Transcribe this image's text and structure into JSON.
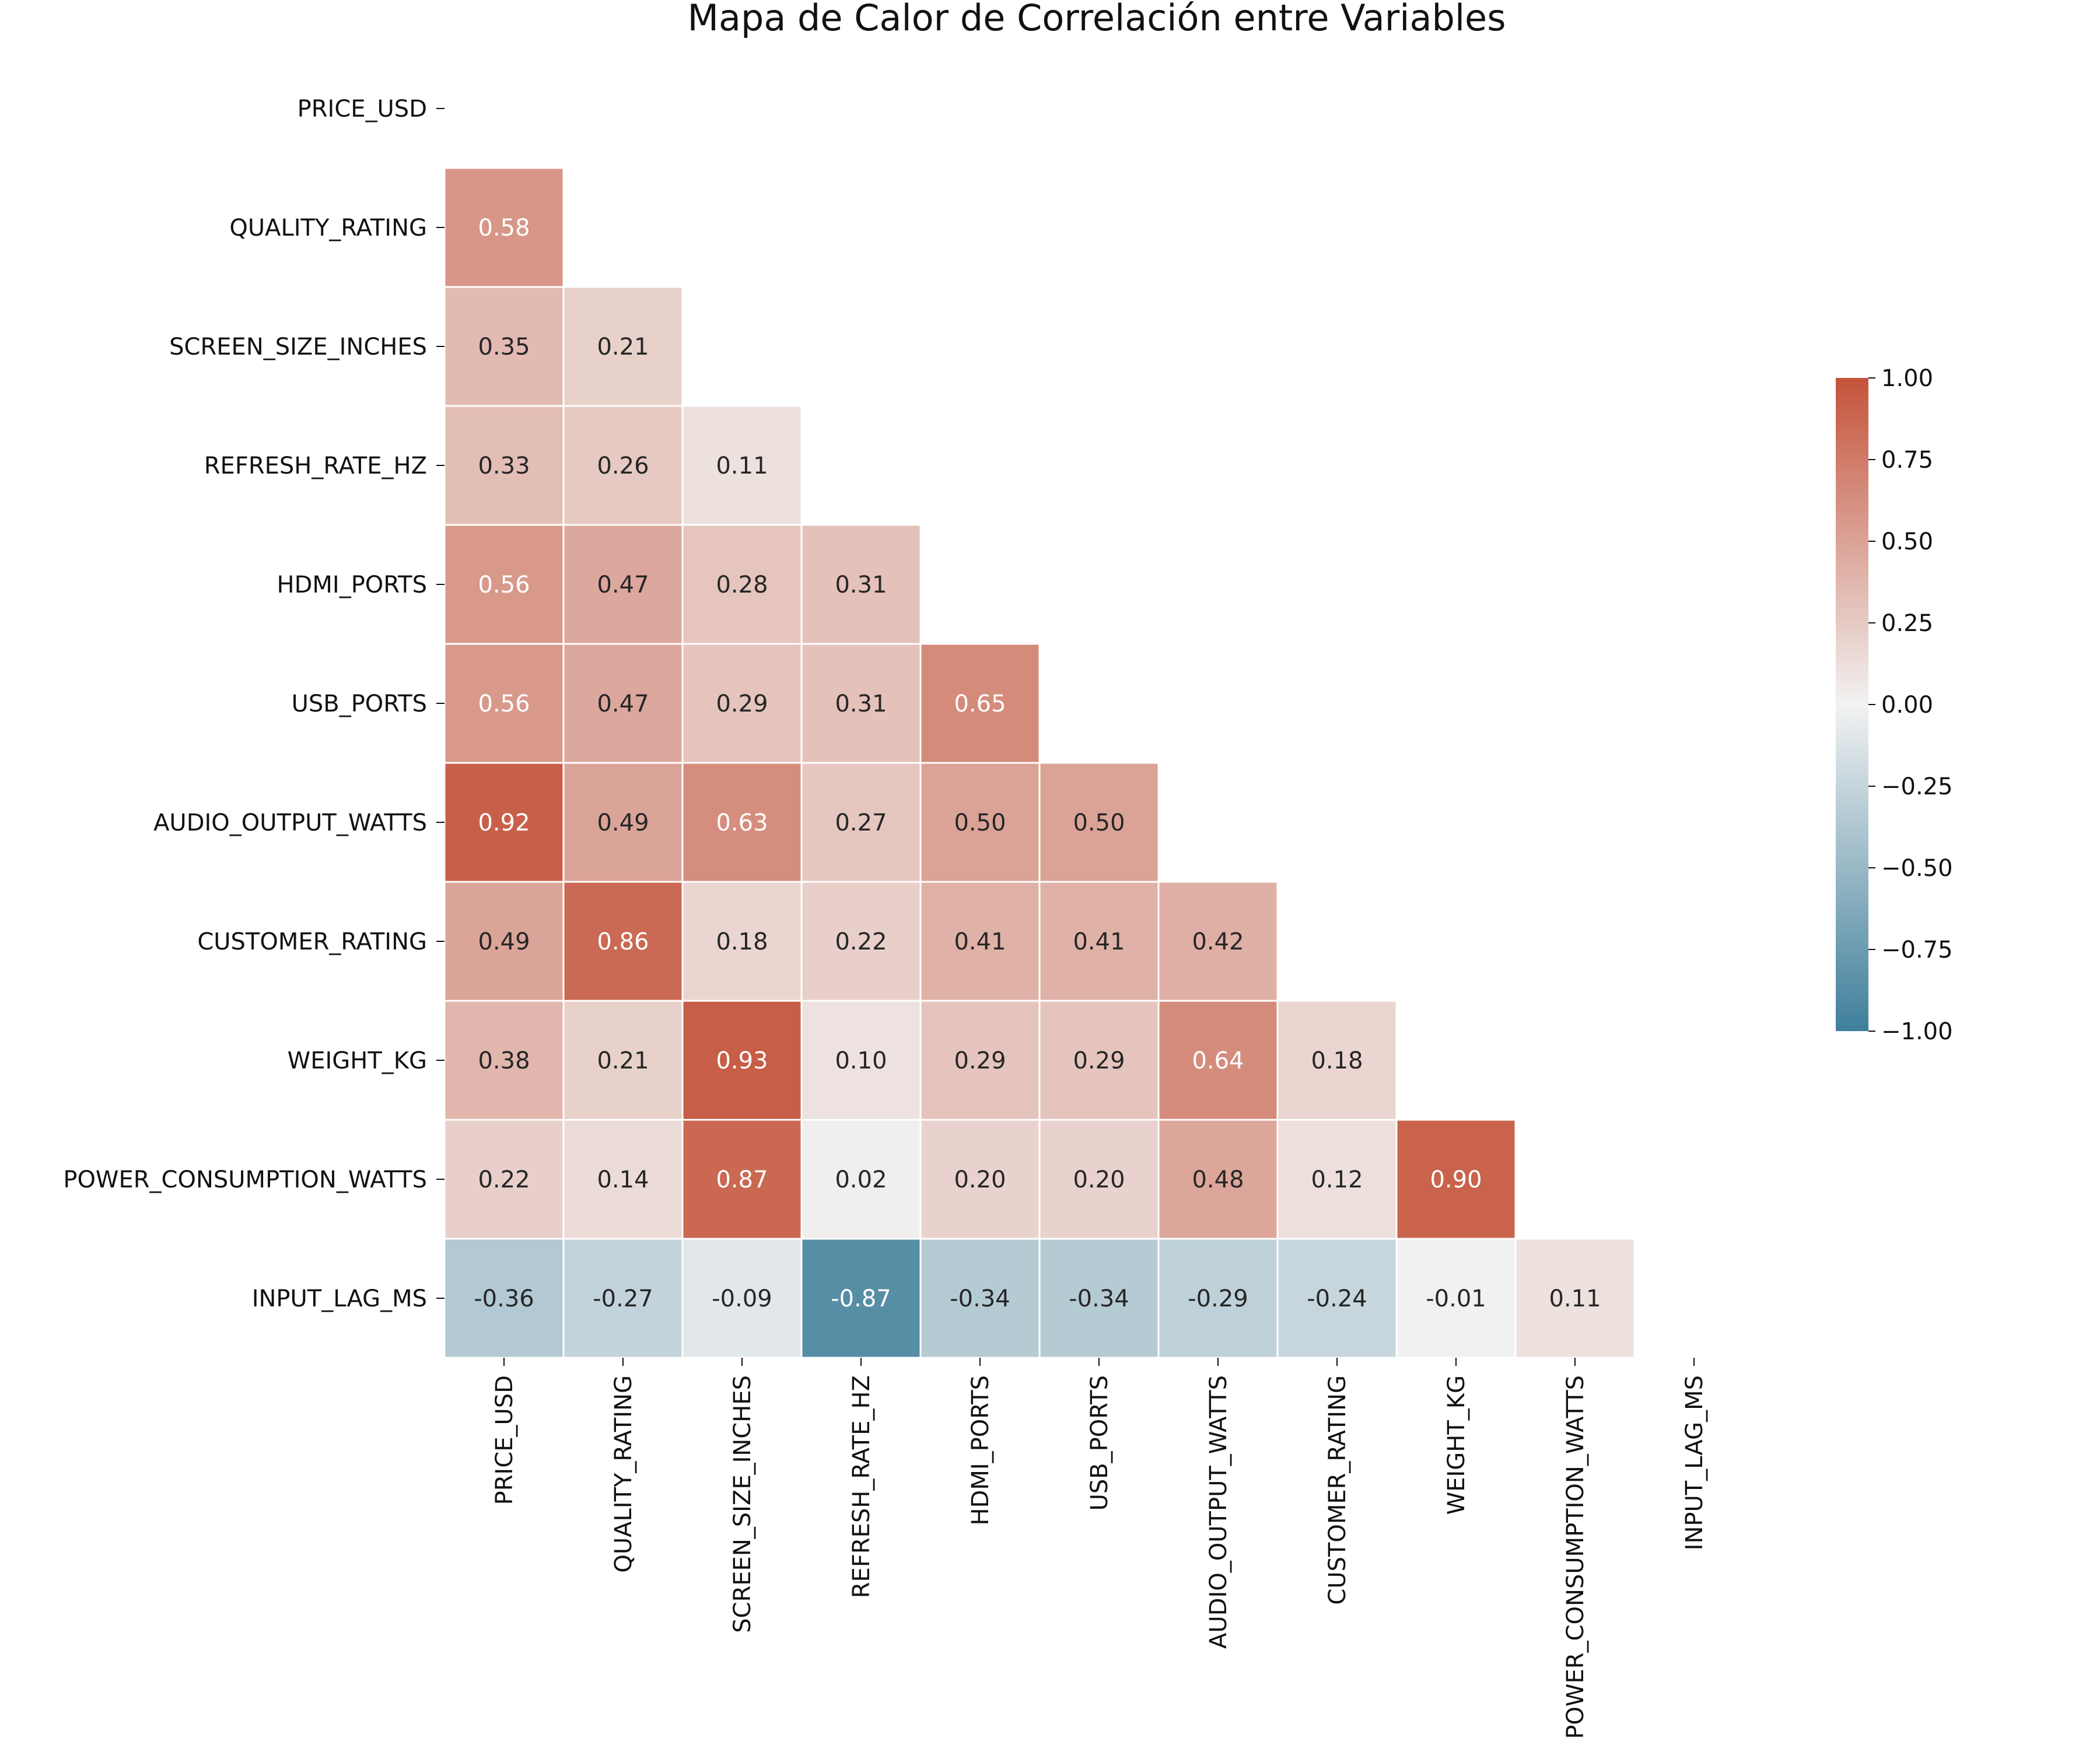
{
  "chart_data": {
    "type": "heatmap",
    "title": "Mapa de Calor de Correlación entre Variables",
    "variables": [
      "PRICE_USD",
      "QUALITY_RATING",
      "SCREEN_SIZE_INCHES",
      "REFRESH_RATE_HZ",
      "HDMI_PORTS",
      "USB_PORTS",
      "AUDIO_OUTPUT_WATTS",
      "CUSTOMER_RATING",
      "WEIGHT_KG",
      "POWER_CONSUMPTION_WATTS",
      "INPUT_LAG_MS"
    ],
    "mask": "upper-triangle-and-diagonal",
    "matrix": [
      [
        null,
        null,
        null,
        null,
        null,
        null,
        null,
        null,
        null,
        null,
        null
      ],
      [
        0.58,
        null,
        null,
        null,
        null,
        null,
        null,
        null,
        null,
        null,
        null
      ],
      [
        0.35,
        0.21,
        null,
        null,
        null,
        null,
        null,
        null,
        null,
        null,
        null
      ],
      [
        0.33,
        0.26,
        0.11,
        null,
        null,
        null,
        null,
        null,
        null,
        null,
        null
      ],
      [
        0.56,
        0.47,
        0.28,
        0.31,
        null,
        null,
        null,
        null,
        null,
        null,
        null
      ],
      [
        0.56,
        0.47,
        0.29,
        0.31,
        0.65,
        null,
        null,
        null,
        null,
        null,
        null
      ],
      [
        0.92,
        0.49,
        0.63,
        0.27,
        0.5,
        0.5,
        null,
        null,
        null,
        null,
        null
      ],
      [
        0.49,
        0.86,
        0.18,
        0.22,
        0.41,
        0.41,
        0.42,
        null,
        null,
        null,
        null
      ],
      [
        0.38,
        0.21,
        0.93,
        0.1,
        0.29,
        0.29,
        0.64,
        0.18,
        null,
        null,
        null
      ],
      [
        0.22,
        0.14,
        0.87,
        0.02,
        0.2,
        0.2,
        0.48,
        0.12,
        0.9,
        null,
        null
      ],
      [
        -0.36,
        -0.27,
        -0.09,
        -0.87,
        -0.34,
        -0.34,
        -0.29,
        -0.24,
        -0.01,
        0.11,
        null
      ]
    ],
    "value_format": "2 decimals",
    "colormap": {
      "low_color": "#3F7F9B",
      "mid_color": "#F2F2F2",
      "high_color": "#C4533A",
      "vmin": -1.0,
      "vmax": 1.0
    },
    "colorbar": {
      "ticks": [
        1.0,
        0.75,
        0.5,
        0.25,
        0.0,
        -0.25,
        -0.5,
        -0.75,
        -1.0
      ],
      "tick_labels": [
        "1.00",
        "0.75",
        "0.50",
        "0.25",
        "0.00",
        "−0.25",
        "−0.50",
        "−0.75",
        "−1.00"
      ],
      "placement": "right"
    },
    "cell_border_color": "#ffffff",
    "text_color_dark": "#262626",
    "text_color_light": "#ffffff"
  }
}
